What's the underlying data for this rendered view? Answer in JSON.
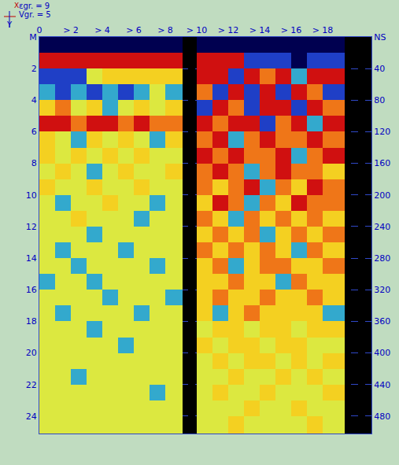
{
  "chart_data": {
    "type": "heatmap",
    "annotations": [
      "X",
      "Y",
      "εgr. = 9",
      "Vgr. = 5"
    ],
    "xlim": [
      0,
      21.1
    ],
    "ylim": [
      0,
      25.1
    ],
    "y2lim": [
      0,
      502
    ],
    "xticks": [
      0,
      {
        "value": 2,
        "label": "> 2"
      },
      {
        "value": 4,
        "label": "> 4"
      },
      {
        "value": 6,
        "label": "> 6"
      },
      {
        "value": 8,
        "label": "> 8"
      },
      {
        "value": 10,
        "label": "> 10"
      },
      {
        "value": 12,
        "label": "> 12"
      },
      {
        "value": 14,
        "label": "> 14"
      },
      {
        "value": 16,
        "label": "> 16"
      },
      {
        "value": 18,
        "label": "> 18"
      }
    ],
    "yticks": [
      {
        "value": 0,
        "label": "M"
      },
      2,
      4,
      6,
      8,
      10,
      12,
      14,
      16,
      18,
      20,
      22,
      24
    ],
    "y2ticks": [
      {
        "value": 0,
        "label": "NS"
      },
      40,
      80,
      120,
      160,
      200,
      240,
      280,
      320,
      360,
      400,
      440,
      480
    ],
    "grid": true,
    "zlim": [
      -3,
      3
    ],
    "x_edges": [
      0,
      1,
      2,
      3,
      4,
      5,
      6,
      7,
      8,
      9.1,
      10,
      11,
      12,
      13,
      14,
      15,
      16,
      17,
      18,
      19.4,
      21.1
    ],
    "y_edges": [
      0,
      1,
      2,
      3,
      4,
      5,
      6,
      7,
      8,
      9,
      10,
      11,
      12,
      13,
      14,
      15,
      16,
      17,
      18,
      19,
      20,
      21,
      22,
      23,
      24,
      25.1
    ],
    "z": [
      [
        -3,
        -3,
        -3,
        -3,
        -3,
        -3,
        -3,
        -3,
        -3,
        null,
        -3,
        -3,
        -3,
        -3,
        -3,
        -3,
        -3,
        -3,
        -3,
        null
      ],
      [
        3,
        3,
        3,
        3,
        3,
        3,
        3,
        3,
        3,
        null,
        3,
        3,
        3,
        -2,
        -2,
        -2,
        -3,
        -2,
        -2,
        null
      ],
      [
        -2,
        -2,
        -2,
        0,
        1,
        1,
        1,
        1,
        1,
        null,
        3,
        3,
        -2,
        3,
        2,
        3,
        -1,
        3,
        3,
        null
      ],
      [
        -1,
        -2,
        -1,
        -2,
        -1,
        -2,
        -1,
        0,
        -1,
        null,
        2,
        -2,
        3,
        -2,
        3,
        -2,
        3,
        2,
        -2,
        null
      ],
      [
        1,
        2,
        0,
        1,
        -1,
        0,
        1,
        0,
        1,
        null,
        -2,
        3,
        2,
        -2,
        3,
        3,
        -2,
        3,
        2,
        null
      ],
      [
        3,
        3,
        2,
        3,
        3,
        2,
        3,
        2,
        2,
        null,
        3,
        2,
        3,
        3,
        -2,
        2,
        3,
        -1,
        3,
        null
      ],
      [
        1,
        0,
        -1,
        1,
        0,
        1,
        0,
        -1,
        1,
        null,
        2,
        3,
        -1,
        2,
        3,
        2,
        2,
        3,
        2,
        null
      ],
      [
        1,
        0,
        1,
        0,
        1,
        0,
        1,
        0,
        0,
        null,
        3,
        2,
        3,
        2,
        2,
        3,
        -1,
        2,
        3,
        null
      ],
      [
        0,
        1,
        0,
        -1,
        0,
        1,
        0,
        0,
        1,
        null,
        2,
        3,
        2,
        -1,
        2,
        3,
        2,
        2,
        1,
        null
      ],
      [
        1,
        0,
        0,
        1,
        0,
        0,
        1,
        0,
        0,
        null,
        2,
        1,
        2,
        3,
        -1,
        2,
        1,
        3,
        2,
        null
      ],
      [
        0,
        -1,
        0,
        0,
        1,
        0,
        0,
        -1,
        0,
        null,
        1,
        3,
        2,
        -1,
        2,
        1,
        3,
        2,
        2,
        null
      ],
      [
        0,
        0,
        1,
        0,
        0,
        0,
        -1,
        0,
        0,
        null,
        2,
        1,
        -1,
        2,
        1,
        2,
        1,
        2,
        1,
        null
      ],
      [
        0,
        0,
        0,
        -1,
        0,
        0,
        0,
        0,
        0,
        null,
        1,
        2,
        1,
        2,
        -1,
        1,
        2,
        1,
        2,
        null
      ],
      [
        0,
        -1,
        0,
        0,
        0,
        -1,
        0,
        0,
        0,
        null,
        2,
        1,
        2,
        1,
        2,
        1,
        -1,
        2,
        1,
        null
      ],
      [
        0,
        0,
        -1,
        0,
        0,
        0,
        0,
        -1,
        0,
        null,
        1,
        2,
        -1,
        1,
        2,
        2,
        1,
        1,
        2,
        null
      ],
      [
        -1,
        0,
        0,
        -1,
        0,
        0,
        0,
        0,
        0,
        null,
        1,
        1,
        2,
        1,
        1,
        -1,
        2,
        1,
        1,
        null
      ],
      [
        0,
        0,
        0,
        0,
        -1,
        0,
        0,
        0,
        -1,
        null,
        1,
        2,
        1,
        1,
        2,
        1,
        1,
        2,
        1,
        null
      ],
      [
        0,
        -1,
        0,
        0,
        0,
        0,
        -1,
        0,
        0,
        null,
        1,
        -1,
        1,
        2,
        1,
        1,
        1,
        1,
        -1,
        null
      ],
      [
        0,
        0,
        0,
        -1,
        0,
        0,
        0,
        0,
        0,
        null,
        0,
        1,
        1,
        0,
        1,
        1,
        0,
        1,
        1,
        null
      ],
      [
        0,
        0,
        0,
        0,
        0,
        -1,
        0,
        0,
        0,
        null,
        1,
        0,
        1,
        1,
        0,
        1,
        1,
        0,
        0,
        null
      ],
      [
        0,
        0,
        0,
        0,
        0,
        0,
        0,
        0,
        0,
        null,
        0,
        1,
        0,
        1,
        1,
        0,
        1,
        0,
        1,
        null
      ],
      [
        0,
        0,
        -1,
        0,
        0,
        0,
        0,
        0,
        0,
        null,
        0,
        0,
        1,
        0,
        0,
        1,
        0,
        1,
        0,
        null
      ],
      [
        0,
        0,
        0,
        0,
        0,
        0,
        0,
        -1,
        0,
        null,
        0,
        1,
        0,
        0,
        1,
        0,
        0,
        0,
        1,
        null
      ],
      [
        0,
        0,
        0,
        0,
        0,
        0,
        0,
        0,
        0,
        null,
        0,
        0,
        0,
        1,
        0,
        0,
        1,
        0,
        0,
        null
      ],
      [
        0,
        0,
        0,
        0,
        0,
        0,
        0,
        0,
        0,
        null,
        0,
        0,
        1,
        0,
        0,
        0,
        0,
        1,
        0,
        null
      ]
    ]
  }
}
